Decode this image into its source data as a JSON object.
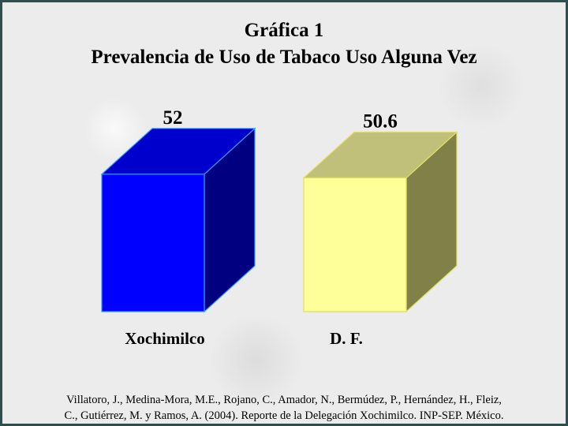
{
  "title_line1": "Gráfica 1",
  "title_line2": "Prevalencia de Uso de Tabaco Uso Alguna Vez",
  "source_line1": "Villatoro, J., Medina-Mora, M.E., Rojano, C., Amador, N., Bermúdez, P., Hernández, H., Fleiz,",
  "source_line2": "C., Gutiérrez, M. y Ramos, A. (2004). Reporte de la Delegación Xochimilco. INP-SEP. México.",
  "chart_data": {
    "type": "bar",
    "style": "3d-box",
    "categories": [
      "Xochimilco",
      "D. F."
    ],
    "values": [
      52,
      50.6
    ],
    "value_labels": [
      "52",
      "50.6"
    ],
    "title": "Gráfica 1 — Prevalencia de Uso de Tabaco Uso Alguna Vez",
    "xlabel": "",
    "ylabel": "",
    "ylim": [
      0,
      60
    ],
    "grid": false,
    "legend": "none",
    "colors": [
      {
        "front": "#0000ff",
        "top": "#0000cc",
        "side": "#000080",
        "edge": "#3399ff"
      },
      {
        "front": "#ffff99",
        "top": "#c0c07a",
        "side": "#808048",
        "edge": "#e0e060"
      }
    ]
  }
}
